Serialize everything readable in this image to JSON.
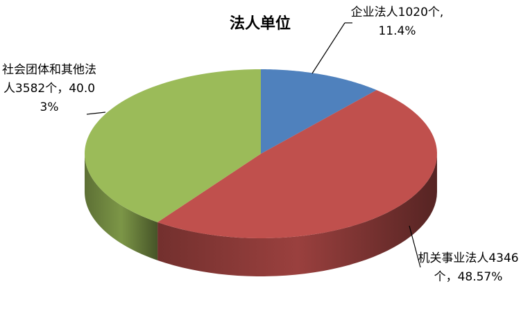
{
  "chart_data": {
    "type": "pie3d",
    "title": "法人单位",
    "categories": [
      "企业法人",
      "机关事业法人",
      "社会团体和其他法人"
    ],
    "values": [
      11.4,
      48.57,
      40.03
    ],
    "value_labels": [
      "企业法人1020个,11.4%",
      "机关事业法人4346个，48.57%",
      "社会团体和其他法人3582个，40.03%"
    ],
    "colors": [
      "#4f81bd",
      "#c0504d",
      "#9bbb59"
    ]
  }
}
